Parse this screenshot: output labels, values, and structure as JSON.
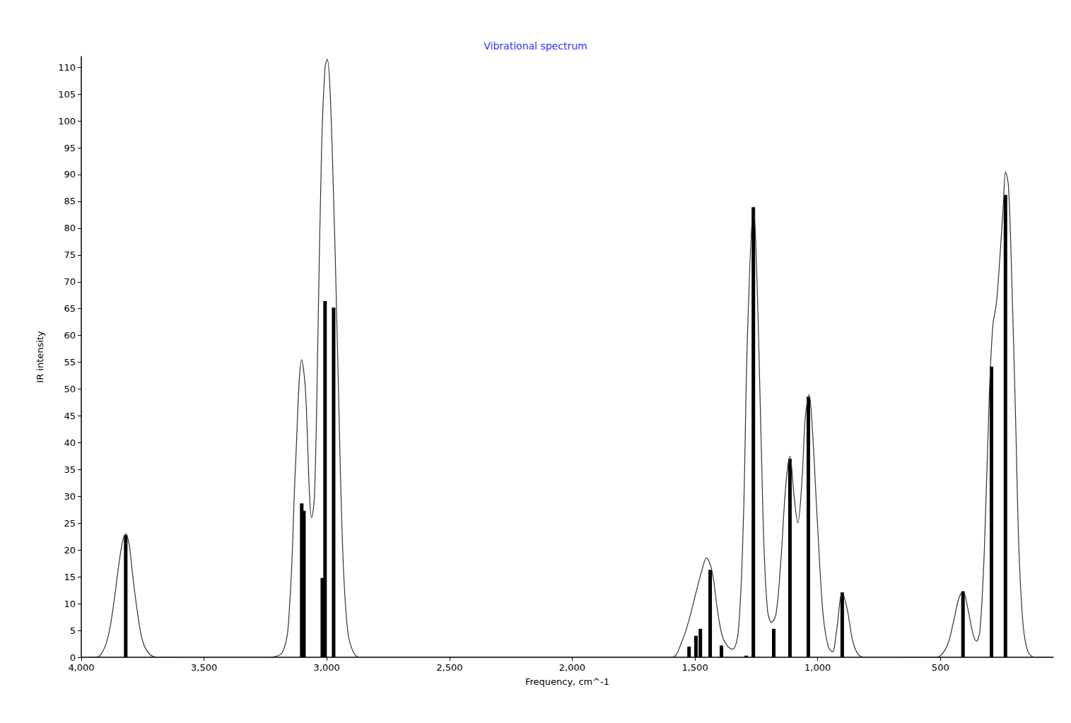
{
  "chart_data": {
    "type": "line",
    "title": "Vibrational spectrum",
    "xlabel": "Frequency, cm^-1",
    "ylabel": "IR intensity",
    "xlim": [
      4000,
      40
    ],
    "xticks": [
      {
        "value": 4000,
        "label": "4,000"
      },
      {
        "value": 3500,
        "label": "3,500"
      },
      {
        "value": 3000,
        "label": "3,000"
      },
      {
        "value": 2500,
        "label": "2,500"
      },
      {
        "value": 2000,
        "label": "2,000"
      },
      {
        "value": 1500,
        "label": "1,500"
      },
      {
        "value": 1000,
        "label": "1,000"
      },
      500
    ],
    "ylim": [
      0,
      112
    ],
    "yticks": [
      0,
      5,
      10,
      15,
      20,
      25,
      30,
      35,
      40,
      45,
      50,
      55,
      60,
      65,
      70,
      75,
      80,
      85,
      90,
      95,
      100,
      105,
      110
    ],
    "grid": false,
    "series": [
      {
        "type": "line",
        "color": "#333333",
        "x": [
          4000,
          3950,
          3920,
          3890,
          3865,
          3845,
          3830,
          3819,
          3805,
          3790,
          3770,
          3750,
          3720,
          3680,
          3250,
          3180,
          3151,
          3128,
          3102,
          3087,
          3070,
          3062,
          3050,
          3036,
          3021,
          3007,
          2998,
          2978,
          2955,
          2935,
          2915,
          2892,
          2863,
          1596,
          1553,
          1524,
          1496,
          1473,
          1453,
          1430,
          1409,
          1389,
          1366,
          1346,
          1323,
          1303,
          1286,
          1262,
          1242,
          1222,
          1205,
          1188,
          1170,
          1150,
          1130,
          1113,
          1096,
          1081,
          1064,
          1050,
          1035,
          1021,
          1001,
          978,
          957,
          940,
          923,
          900,
          880,
          857,
          834,
          806,
          517,
          474,
          445,
          425,
          408,
          388,
          368,
          353,
          339,
          321,
          300,
          286,
          272,
          257,
          243,
          235,
          223,
          209,
          194,
          180,
          163,
          143,
          114,
          40
        ],
        "values": [
          0,
          0,
          0.5,
          4,
          11,
          18,
          22,
          23,
          21,
          15,
          8,
          3,
          0.5,
          0,
          0,
          1,
          10,
          35,
          55.5,
          50,
          30,
          26,
          30,
          60,
          95,
          110,
          111.5,
          95,
          55,
          20,
          5,
          1,
          0,
          0,
          3,
          7,
          12,
          16,
          18.5,
          16,
          9,
          4,
          2,
          1.5,
          5,
          25,
          60,
          84,
          62,
          25,
          9,
          6.5,
          8,
          18,
          32,
          37.5,
          30,
          25,
          33,
          45,
          49,
          42,
          25,
          8,
          2,
          1,
          5,
          12,
          9,
          3,
          0.5,
          0,
          0,
          2,
          7,
          11,
          12.3,
          9,
          4.5,
          3,
          5,
          20,
          50,
          62,
          66,
          75,
          85,
          90.5,
          88,
          70,
          45,
          20,
          6,
          1,
          0,
          0
        ]
      },
      {
        "type": "bar",
        "color": "#000000",
        "x": [
          3819,
          3102,
          3093,
          3018,
          3007,
          2972,
          1524,
          1496,
          1478,
          1438,
          1392,
          1291,
          1262,
          1179,
          1113,
          1038,
          900,
          408,
          292,
          235
        ],
        "values": [
          22.8,
          28.7,
          27.3,
          14.8,
          66.4,
          65.2,
          2,
          4,
          5.3,
          16.3,
          2.2,
          0.3,
          83.9,
          5.3,
          37,
          48.6,
          12.1,
          12.3,
          54.2,
          86.2
        ]
      }
    ]
  }
}
